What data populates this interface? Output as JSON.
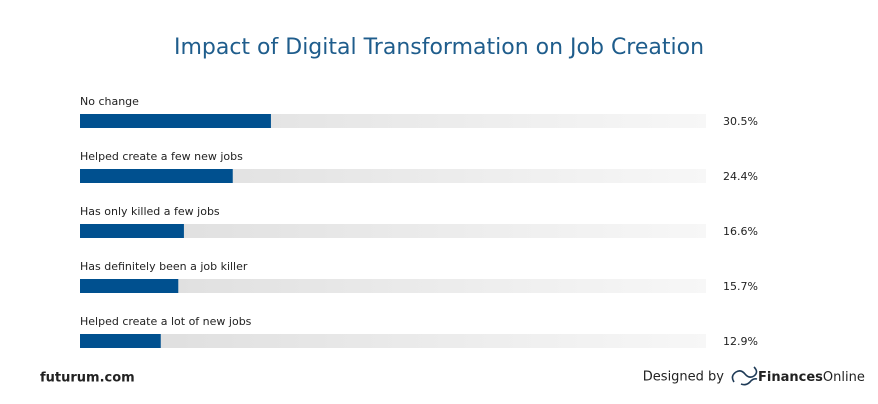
{
  "chart_data": {
    "type": "bar",
    "orientation": "horizontal",
    "title": "Impact of Digital Transformation on Job Creation",
    "categories": [
      "No change",
      "Helped create a few new jobs",
      "Has only killed a few jobs",
      "Has definitely been a job killer",
      "Helped create a lot of new jobs"
    ],
    "values": [
      30.5,
      24.4,
      16.6,
      15.7,
      12.9
    ],
    "value_labels": [
      "30.5%",
      "24.4%",
      "16.6%",
      "15.7%",
      "12.9%"
    ],
    "color": "#00508f",
    "xlim": [
      0,
      100
    ]
  },
  "footer": {
    "source": "futurum.com",
    "designed_by": "Designed by",
    "brand": [
      "Finances",
      "Online"
    ]
  }
}
